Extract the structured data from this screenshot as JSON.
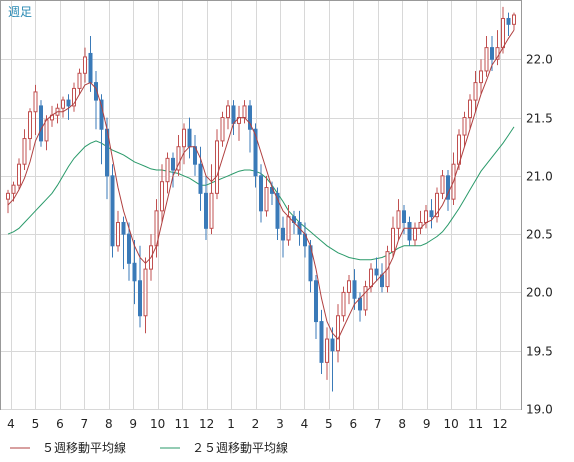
{
  "chart_data": {
    "type": "candlestick",
    "period_label": "週足",
    "y_axis": {
      "min": 19.0,
      "max": 22.5,
      "ticks": [
        19.0,
        19.5,
        20.0,
        20.5,
        21.0,
        21.5,
        22.0
      ],
      "tick_labels": [
        "19.0",
        "19.5",
        "20.0",
        "20.5",
        "21.0",
        "21.5",
        "22.0"
      ]
    },
    "x_axis": {
      "tick_labels": [
        "4",
        "5",
        "6",
        "7",
        "8",
        "9",
        "10",
        "11",
        "12",
        "1",
        "2",
        "3",
        "4",
        "5",
        "6",
        "7",
        "8",
        "9",
        "10",
        "11",
        "12"
      ]
    },
    "legend": [
      {
        "label": "５週移動平均線",
        "color": "#b04040"
      },
      {
        "label": "２５週移動平均線",
        "color": "#2a9a6a"
      }
    ],
    "colors": {
      "up": "#c05050",
      "down": "#3a7ab8"
    },
    "candles": [
      [
        20.8,
        20.85,
        20.68,
        20.88
      ],
      [
        20.85,
        20.92,
        20.78,
        20.95
      ],
      [
        20.92,
        21.1,
        20.88,
        21.15
      ],
      [
        21.1,
        21.32,
        21.05,
        21.4
      ],
      [
        21.32,
        21.55,
        21.22,
        21.58
      ],
      [
        21.55,
        21.72,
        21.35,
        21.78
      ],
      [
        21.6,
        21.3,
        21.25,
        21.65
      ],
      [
        21.3,
        21.48,
        21.22,
        21.52
      ],
      [
        21.48,
        21.52,
        21.42,
        21.6
      ],
      [
        21.52,
        21.58,
        21.45,
        21.62
      ],
      [
        21.58,
        21.65,
        21.5,
        21.68
      ],
      [
        21.65,
        21.6,
        21.48,
        21.7
      ],
      [
        21.6,
        21.75,
        21.55,
        21.8
      ],
      [
        21.75,
        21.88,
        21.7,
        21.92
      ],
      [
        21.88,
        22.02,
        21.8,
        22.1
      ],
      [
        22.05,
        21.8,
        21.72,
        22.2
      ],
      [
        21.8,
        21.65,
        21.4,
        21.9
      ],
      [
        21.65,
        21.4,
        21.1,
        21.7
      ],
      [
        21.4,
        21.0,
        20.8,
        21.5
      ],
      [
        21.0,
        20.4,
        20.3,
        21.1
      ],
      [
        20.4,
        20.6,
        20.35,
        20.7
      ],
      [
        20.6,
        20.5,
        20.2,
        20.65
      ],
      [
        20.5,
        20.25,
        20.1,
        20.6
      ],
      [
        20.25,
        20.1,
        19.9,
        20.45
      ],
      [
        20.1,
        19.8,
        19.7,
        20.4
      ],
      [
        19.8,
        20.2,
        19.65,
        20.3
      ],
      [
        20.2,
        20.4,
        20.1,
        20.5
      ],
      [
        20.4,
        20.7,
        20.3,
        20.8
      ],
      [
        20.7,
        20.95,
        20.6,
        21.1
      ],
      [
        20.95,
        21.15,
        20.85,
        21.2
      ],
      [
        21.15,
        21.05,
        20.9,
        21.2
      ],
      [
        21.05,
        21.25,
        21.0,
        21.35
      ],
      [
        21.25,
        21.4,
        21.1,
        21.45
      ],
      [
        21.4,
        21.25,
        21.15,
        21.5
      ],
      [
        21.25,
        21.1,
        21.0,
        21.35
      ],
      [
        21.1,
        20.85,
        20.7,
        21.25
      ],
      [
        20.85,
        20.55,
        20.45,
        21.0
      ],
      [
        20.55,
        20.85,
        20.5,
        21.1
      ],
      [
        20.85,
        21.3,
        20.8,
        21.4
      ],
      [
        21.3,
        21.5,
        21.25,
        21.55
      ],
      [
        21.5,
        21.6,
        21.4,
        21.65
      ],
      [
        21.6,
        21.45,
        21.35,
        21.65
      ],
      [
        21.45,
        21.5,
        21.3,
        21.6
      ],
      [
        21.5,
        21.6,
        21.45,
        21.65
      ],
      [
        21.6,
        21.4,
        21.2,
        21.65
      ],
      [
        21.4,
        21.0,
        20.9,
        21.45
      ],
      [
        21.0,
        20.7,
        20.6,
        21.1
      ],
      [
        20.7,
        20.9,
        20.65,
        21.0
      ],
      [
        20.9,
        20.85,
        20.75,
        20.95
      ],
      [
        20.85,
        20.55,
        20.45,
        20.9
      ],
      [
        20.55,
        20.45,
        20.3,
        20.65
      ],
      [
        20.45,
        20.65,
        20.4,
        20.75
      ],
      [
        20.65,
        20.6,
        20.5,
        20.7
      ],
      [
        20.6,
        20.5,
        20.4,
        20.7
      ],
      [
        20.5,
        20.4,
        20.3,
        20.6
      ],
      [
        20.4,
        20.1,
        20.0,
        20.45
      ],
      [
        20.1,
        19.75,
        19.6,
        20.15
      ],
      [
        19.75,
        19.4,
        19.3,
        19.85
      ],
      [
        19.4,
        19.6,
        19.25,
        19.7
      ],
      [
        19.6,
        19.5,
        19.15,
        19.7
      ],
      [
        19.5,
        19.8,
        19.4,
        19.9
      ],
      [
        19.8,
        20.0,
        19.75,
        20.05
      ],
      [
        20.0,
        20.1,
        19.9,
        20.15
      ],
      [
        20.1,
        19.95,
        19.85,
        20.2
      ],
      [
        19.95,
        19.85,
        19.75,
        20.0
      ],
      [
        19.85,
        20.05,
        19.8,
        20.1
      ],
      [
        20.05,
        20.2,
        20.0,
        20.25
      ],
      [
        20.2,
        20.15,
        20.1,
        20.3
      ],
      [
        20.15,
        20.05,
        20.0,
        20.25
      ],
      [
        20.05,
        20.35,
        20.0,
        20.4
      ],
      [
        20.35,
        20.55,
        20.3,
        20.65
      ],
      [
        20.55,
        20.7,
        20.45,
        20.8
      ],
      [
        20.7,
        20.6,
        20.5,
        20.75
      ],
      [
        20.6,
        20.45,
        20.4,
        20.65
      ],
      [
        20.45,
        20.55,
        20.4,
        20.6
      ],
      [
        20.55,
        20.6,
        20.5,
        20.7
      ],
      [
        20.6,
        20.7,
        20.55,
        20.75
      ],
      [
        20.7,
        20.65,
        20.55,
        20.8
      ],
      [
        20.65,
        20.85,
        20.6,
        20.9
      ],
      [
        20.85,
        21.0,
        20.8,
        21.05
      ],
      [
        21.0,
        20.8,
        20.7,
        21.05
      ],
      [
        20.8,
        21.1,
        20.75,
        21.2
      ],
      [
        21.1,
        21.35,
        21.05,
        21.4
      ],
      [
        21.35,
        21.5,
        21.25,
        21.55
      ],
      [
        21.5,
        21.65,
        21.4,
        21.7
      ],
      [
        21.65,
        21.8,
        21.55,
        21.9
      ],
      [
        21.8,
        21.9,
        21.7,
        22.0
      ],
      [
        21.9,
        22.1,
        21.85,
        22.2
      ],
      [
        22.1,
        22.0,
        21.9,
        22.2
      ],
      [
        22.0,
        22.1,
        21.95,
        22.25
      ],
      [
        22.1,
        22.35,
        22.05,
        22.45
      ],
      [
        22.35,
        22.3,
        22.2,
        22.4
      ],
      [
        22.3,
        22.38,
        22.25,
        22.4
      ]
    ],
    "ma5": [
      20.75,
      20.8,
      20.88,
      20.98,
      21.12,
      21.3,
      21.4,
      21.48,
      21.52,
      21.55,
      21.55,
      21.58,
      21.62,
      21.7,
      21.78,
      21.8,
      21.75,
      21.6,
      21.4,
      21.15,
      20.9,
      20.7,
      20.55,
      20.4,
      20.3,
      20.25,
      20.3,
      20.4,
      20.6,
      20.8,
      21.0,
      21.1,
      21.2,
      21.25,
      21.25,
      21.15,
      21.0,
      20.95,
      21.0,
      21.15,
      21.3,
      21.45,
      21.5,
      21.5,
      21.45,
      21.35,
      21.2,
      21.05,
      20.9,
      20.8,
      20.7,
      20.65,
      20.6,
      20.55,
      20.5,
      20.4,
      20.2,
      19.95,
      19.75,
      19.65,
      19.6,
      19.7,
      19.8,
      19.9,
      19.95,
      20.0,
      20.05,
      20.1,
      20.15,
      20.2,
      20.3,
      20.45,
      20.55,
      20.55,
      20.55,
      20.55,
      20.6,
      20.62,
      20.68,
      20.75,
      20.85,
      20.95,
      21.1,
      21.25,
      21.4,
      21.55,
      21.7,
      21.82,
      21.95,
      22.02,
      22.1,
      22.18,
      22.25
    ],
    "ma25": [
      20.5,
      20.52,
      20.55,
      20.6,
      20.65,
      20.7,
      20.75,
      20.8,
      20.85,
      20.92,
      21.0,
      21.08,
      21.15,
      21.2,
      21.25,
      21.28,
      21.3,
      21.28,
      21.25,
      21.22,
      21.2,
      21.18,
      21.15,
      21.12,
      21.1,
      21.08,
      21.06,
      21.05,
      21.05,
      21.04,
      21.03,
      21.02,
      21.0,
      20.98,
      20.95,
      20.92,
      20.92,
      20.94,
      20.96,
      20.98,
      21.0,
      21.02,
      21.04,
      21.05,
      21.05,
      21.04,
      21.02,
      20.98,
      20.92,
      20.85,
      20.78,
      20.7,
      20.65,
      20.6,
      20.56,
      20.52,
      20.48,
      20.44,
      20.4,
      20.37,
      20.34,
      20.32,
      20.3,
      20.29,
      20.28,
      20.28,
      20.28,
      20.29,
      20.3,
      20.32,
      20.35,
      20.38,
      20.4,
      20.4,
      20.4,
      20.4,
      20.42,
      20.45,
      20.48,
      20.52,
      20.58,
      20.65,
      20.72,
      20.8,
      20.88,
      20.96,
      21.04,
      21.1,
      21.16,
      21.22,
      21.28,
      21.35,
      21.42
    ]
  }
}
